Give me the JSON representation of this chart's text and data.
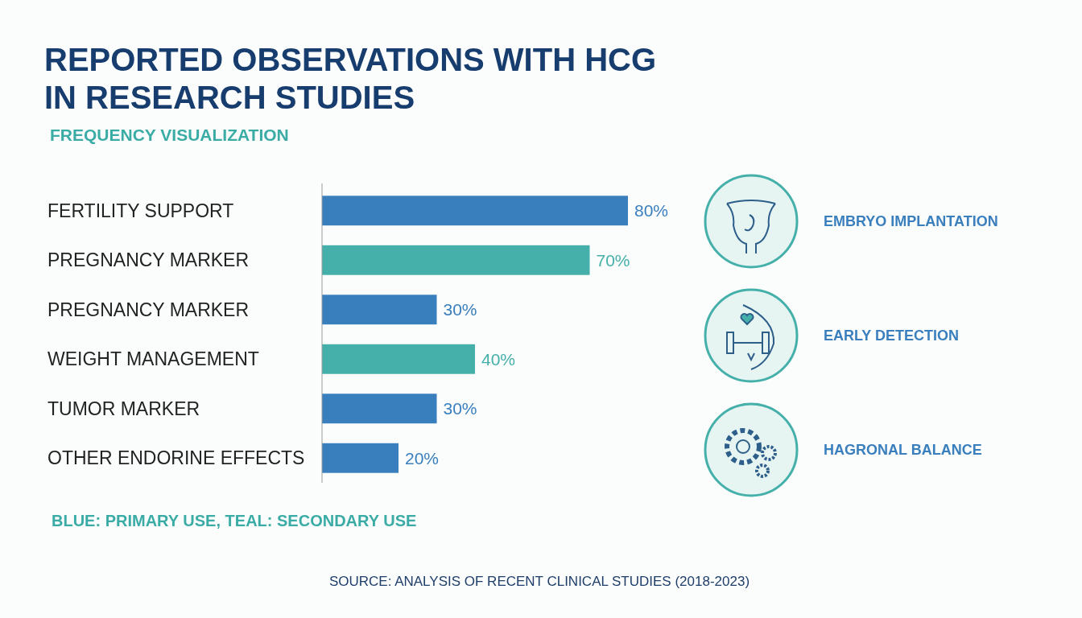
{
  "chart_data": {
    "type": "bar",
    "orientation": "horizontal",
    "title": "REPORTED OBSERVATIONS WITH HCG IN RESEARCH STUDIES",
    "subtitle": "FREQUENCY VISUALIZATION",
    "categories": [
      "FERTILITY SUPPORT",
      "PREGNANCY MARKER",
      "PREGNANCY MARKER",
      "WEIGHT MANAGEMENT",
      "TUMOR MARKER",
      "OTHER ENDORINE EFFECTS"
    ],
    "values": [
      80,
      70,
      30,
      40,
      30,
      20
    ],
    "colors": [
      "#3a7fbd",
      "#45b0aa",
      "#3a7fbd",
      "#45b0aa",
      "#3a7fbd",
      "#3a7fbd"
    ],
    "value_labels": [
      "80%",
      "70%",
      "30%",
      "40%",
      "30%",
      "20%"
    ],
    "annotations": [
      "BLUE: PRIMARY USE, TEAL: SECONDARY USE",
      "SOURCE: ANALYSIS OF RECENT CLINICAL STUDIES (2018-2023)",
      "EMBRYO IMPLANTATION",
      "EARLY DETECTION",
      "HAGRONAL BALANCE"
    ]
  }
}
